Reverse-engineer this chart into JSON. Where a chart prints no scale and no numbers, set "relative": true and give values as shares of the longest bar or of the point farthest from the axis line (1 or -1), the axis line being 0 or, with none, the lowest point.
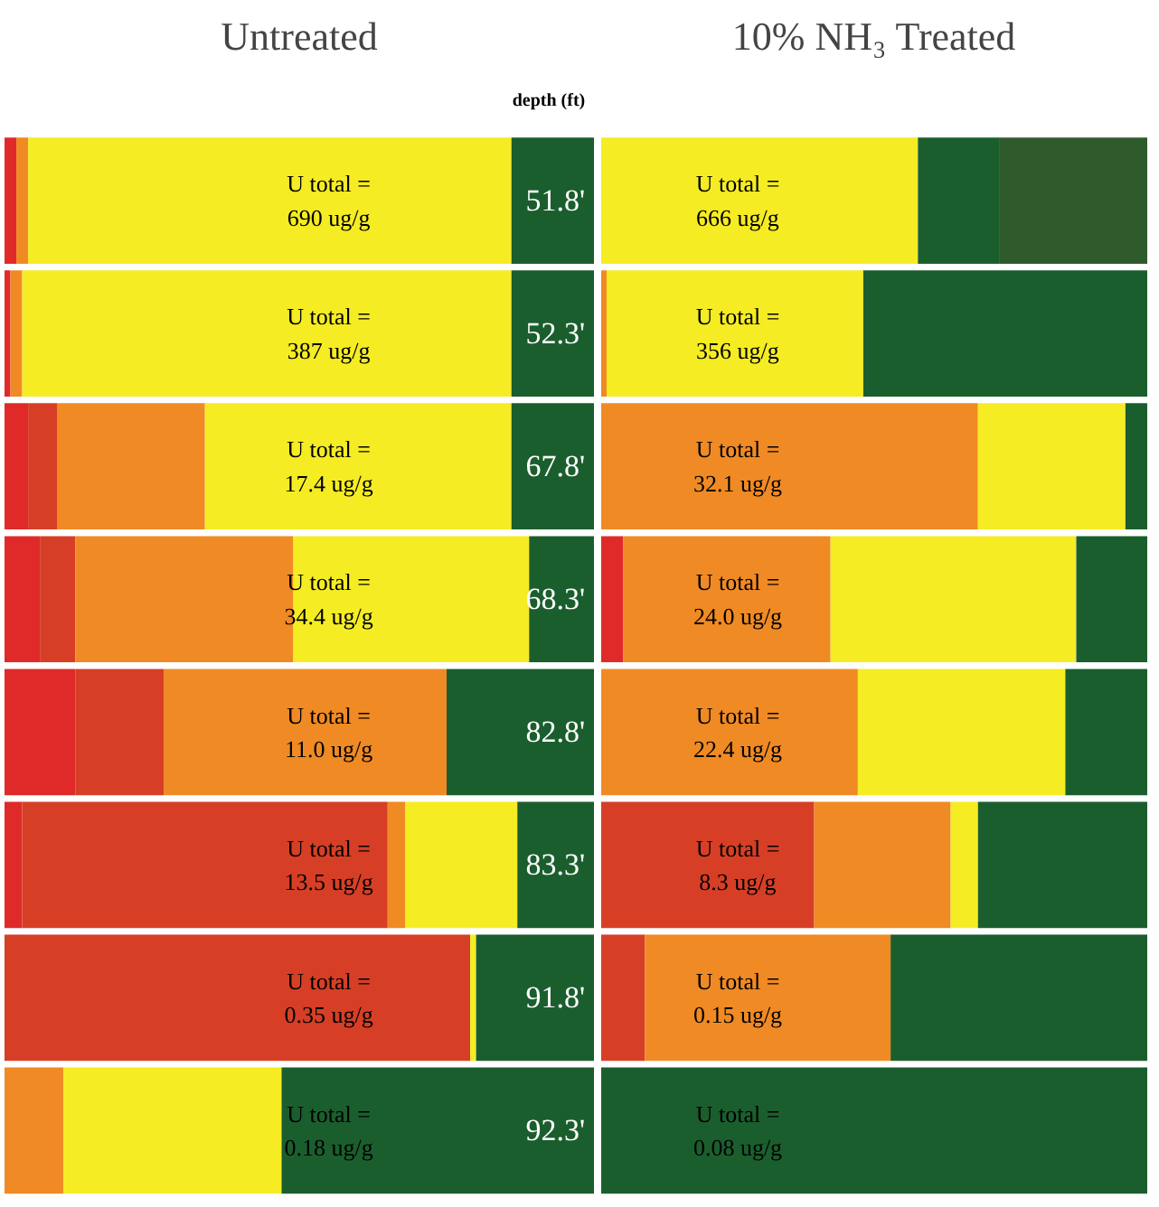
{
  "chart_data": [
    {
      "type": "bar",
      "title": "Untreated",
      "ylabel": "depth (ft)",
      "orientation": "horizontal",
      "stacked": true,
      "relative": true,
      "categories": [
        "51.8'",
        "52.3'",
        "67.8'",
        "68.3'",
        "82.8'",
        "83.3'",
        "91.8'",
        "92.3'"
      ],
      "series": [
        {
          "color": "#e02a2a",
          "values": [
            0.02,
            0.01,
            0.04,
            0.06,
            0.12,
            0.03,
            0,
            0
          ]
        },
        {
          "color": "#d63f26",
          "values": [
            0,
            0,
            0.05,
            0.06,
            0.15,
            0.62,
            0.79,
            0
          ]
        },
        {
          "color": "#f08a24",
          "values": [
            0.02,
            0.02,
            0.25,
            0.37,
            0.48,
            0.03,
            0,
            0.1
          ]
        },
        {
          "color": "#f5ec23",
          "values": [
            0.82,
            0.83,
            0.52,
            0.4,
            0,
            0.19,
            0.01,
            0.37
          ]
        },
        {
          "color": "#1b5e2e",
          "values": [
            0.14,
            0.14,
            0.14,
            0.11,
            0.25,
            0.13,
            0.2,
            0.53
          ]
        }
      ],
      "annotations": [
        "U total =\n690 ug/g",
        "U total =\n387 ug/g",
        "U total =\n17.4 ug/g",
        "U total =\n34.4 ug/g",
        "U total =\n11.0 ug/g",
        "U total =\n13.5 ug/g",
        "U total =\n0.35 ug/g",
        "U total =\n0.18 ug/g"
      ]
    },
    {
      "type": "bar",
      "title": "10% NH₃ Treated",
      "orientation": "horizontal",
      "stacked": true,
      "relative": true,
      "categories": [
        null,
        null,
        null,
        null,
        null,
        null,
        null,
        null
      ],
      "series": [
        {
          "color": "#e02a2a",
          "values": [
            0,
            0,
            0,
            0.04,
            0,
            0,
            0,
            0
          ]
        },
        {
          "color": "#d63f26",
          "values": [
            0,
            0,
            0,
            0,
            0,
            0.39,
            0.08,
            0
          ]
        },
        {
          "color": "#f08a24",
          "values": [
            0,
            0.01,
            0.69,
            0.38,
            0.47,
            0.25,
            0.45,
            0
          ]
        },
        {
          "color": "#f5ec23",
          "values": [
            0.58,
            0.47,
            0.27,
            0.45,
            0.38,
            0.05,
            0,
            0
          ]
        },
        {
          "color": "#1b5e2e",
          "values": [
            0.15,
            0.52,
            0.04,
            0.13,
            0.15,
            0.31,
            0.47,
            1
          ]
        },
        {
          "color": "#2f5a2b",
          "values": [
            0.27,
            0,
            0,
            0,
            0,
            0,
            0,
            0
          ]
        }
      ],
      "annotations": [
        "U total =\n666 ug/g",
        "U total =\n356 ug/g",
        "U total =\n32.1 ug/g",
        "U total =\n24.0 ug/g",
        "U total =\n22.4 ug/g",
        "U total =\n8.3 ug/g",
        "U total =\n0.15 ug/g",
        "U total =\n0.08 ug/g"
      ]
    }
  ]
}
